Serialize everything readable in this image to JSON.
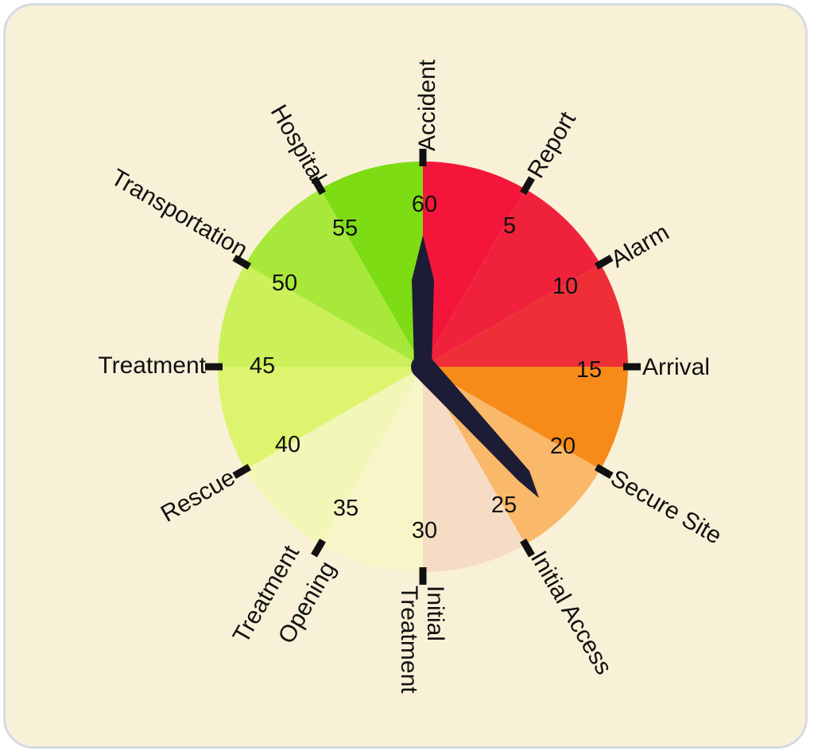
{
  "clock": {
    "segments": [
      {
        "value": "5",
        "label": "Report",
        "color": "#f3163a"
      },
      {
        "value": "10",
        "label": "Alarm",
        "color": "#f0223b"
      },
      {
        "value": "15",
        "label": "Arrival",
        "color": "#ef2f38"
      },
      {
        "value": "20",
        "label": "Secure Site",
        "color": "#f68b1a"
      },
      {
        "value": "25",
        "label": "Initial Access",
        "color": "#f9b86a"
      },
      {
        "value": "30",
        "label": "Initial Treatment",
        "color": "#f6dcc4"
      },
      {
        "value": "35",
        "label": "Treatment Opening",
        "color": "#f8f5c8"
      },
      {
        "value": "40",
        "label": "Rescue",
        "color": "#f2f6b7"
      },
      {
        "value": "45",
        "label": "Treatment",
        "color": "#dcf46e"
      },
      {
        "value": "50",
        "label": "Transportation",
        "color": "#cbf05a"
      },
      {
        "value": "55",
        "label": "Hospital",
        "color": "#a8e83a"
      },
      {
        "value": "60",
        "label": "Accident",
        "color": "#7ddc14"
      }
    ],
    "hand_minute": 24,
    "hand_hour": 60
  },
  "labels": {
    "l60": "Accident",
    "l5": "Report",
    "l10": "Alarm",
    "l15": "Arrival",
    "l20": "Secure Site",
    "l25": "Initial Access",
    "l30_line1": "Initial",
    "l30_line2": "Treatment",
    "l35_line1": "Treatment",
    "l35_line2": "Opening",
    "l40": "Rescue",
    "l45": "Treatment",
    "l50": "Transportation",
    "l55": "Hospital"
  },
  "numbers": {
    "n5": "5",
    "n10": "10",
    "n15": "15",
    "n20": "20",
    "n25": "25",
    "n30": "30",
    "n35": "35",
    "n40": "40",
    "n45": "45",
    "n50": "50",
    "n55": "55",
    "n60": "60"
  }
}
